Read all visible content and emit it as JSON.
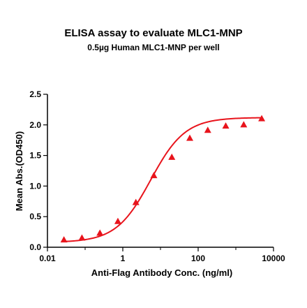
{
  "chart_data": {
    "type": "scatter",
    "title": "ELISA assay to evaluate MLC1-MNP",
    "subtitle": "0.5µg Human MLC1-MNP per well",
    "xlabel": "Anti-Flag Antibody Conc. (ng/ml)",
    "ylabel": "Mean Abs.(OD450)",
    "x_scale": "log",
    "xlim": [
      0.01,
      10000
    ],
    "ylim": [
      0.0,
      2.5
    ],
    "x_ticks": [
      0.01,
      1,
      100,
      10000
    ],
    "x_tick_labels": [
      "0.01",
      "1",
      "100",
      "10000"
    ],
    "y_ticks": [
      0.0,
      0.5,
      1.0,
      1.5,
      2.0,
      2.5
    ],
    "y_tick_labels": [
      "0.0",
      "0.5",
      "1.0",
      "1.5",
      "2.0",
      "2.5"
    ],
    "grid": false,
    "legend": "none",
    "color": "#e8141c",
    "marker": "triangle",
    "series": [
      {
        "x": [
          0.0274,
          0.0823,
          0.2469,
          0.7407,
          2.222,
          6.667,
          20,
          60,
          180,
          540,
          1620,
          4860
        ],
        "y": [
          0.12,
          0.15,
          0.23,
          0.42,
          0.73,
          1.17,
          1.47,
          1.78,
          1.91,
          1.98,
          2.0,
          2.1
        ]
      }
    ],
    "fit_curve": "four-parameter logistic",
    "fit_params": {
      "bottom": 0.08,
      "top": 2.12,
      "ec50": 5.5,
      "hill": 0.95
    }
  }
}
